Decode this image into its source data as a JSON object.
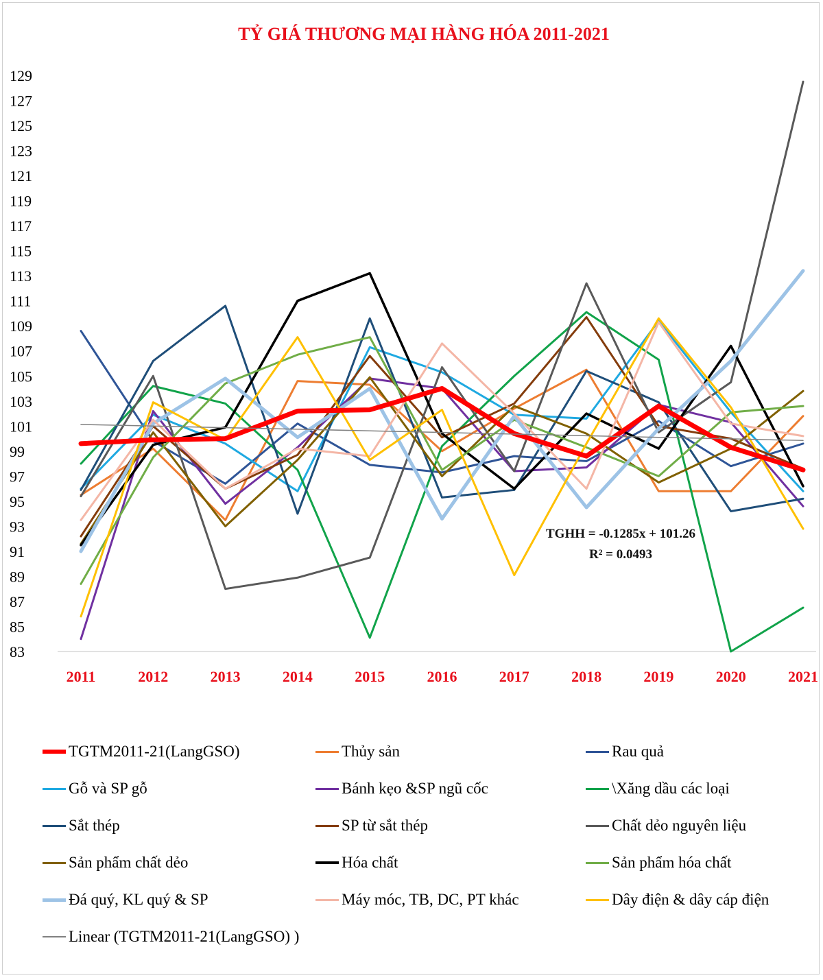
{
  "chart_data": {
    "type": "line",
    "title": "TỶ GIÁ THƯƠNG MẠI HÀNG HÓA 2011-2021",
    "x": [
      "2011",
      "2012",
      "2013",
      "2014",
      "2015",
      "2016",
      "2017",
      "2018",
      "2019",
      "2020",
      "2021"
    ],
    "ylim": [
      83,
      129
    ],
    "yticks": [
      83,
      85,
      87,
      89,
      91,
      93,
      95,
      97,
      99,
      101,
      103,
      105,
      107,
      109,
      111,
      113,
      115,
      117,
      119,
      121,
      123,
      125,
      127,
      129
    ],
    "grid": false,
    "legend_position": "bottom",
    "annotation": [
      "TGHH = -0.1285x + 101.26",
      "R² = 0.0493"
    ],
    "series": [
      {
        "name": "Thủy sản",
        "color": "#ed7d31",
        "width": 3,
        "values": [
          95.5,
          99.2,
          93.5,
          104.6,
          104.3,
          99.0,
          102.4,
          105.5,
          95.8,
          95.8,
          101.8
        ]
      },
      {
        "name": "Rau quả",
        "color": "#2f5597",
        "width": 3,
        "values": [
          108.6,
          99.8,
          96.4,
          101.2,
          97.9,
          97.3,
          98.6,
          98.2,
          101.4,
          97.8,
          99.6
        ]
      },
      {
        "name": "Gỗ và SP gỗ",
        "color": "#1fa9e1",
        "width": 3,
        "values": [
          96.0,
          101.9,
          99.6,
          95.8,
          107.3,
          105.3,
          101.9,
          101.6,
          109.4,
          102.1,
          95.8
        ]
      },
      {
        "name": "Bánh kẹo &SP ngũ cốc",
        "color": "#7030a0",
        "width": 3,
        "values": [
          84.0,
          102.2,
          94.8,
          99.3,
          104.8,
          104.0,
          97.4,
          97.7,
          102.7,
          101.3,
          94.6
        ]
      },
      {
        "name": "\\Xăng dầu các loại",
        "color": "#11a34a",
        "width": 3,
        "values": [
          98.0,
          104.2,
          102.8,
          97.5,
          84.1,
          99.4,
          105.0,
          110.1,
          106.3,
          83.0,
          86.5
        ]
      },
      {
        "name": "Sắt thép",
        "color": "#1f4e79",
        "width": 3,
        "values": [
          95.9,
          106.2,
          110.6,
          94.0,
          109.6,
          95.3,
          95.9,
          105.4,
          102.9,
          94.2,
          95.2
        ]
      },
      {
        "name": "SP từ sắt thép",
        "color": "#843c0c",
        "width": 3,
        "values": [
          92.2,
          101.0,
          96.0,
          98.7,
          106.6,
          100.1,
          102.8,
          109.7,
          101.0,
          100.0,
          97.6
        ]
      },
      {
        "name": "Chất dẻo nguyên liệu",
        "color": "#595959",
        "width": 3,
        "values": [
          95.4,
          105.0,
          88.0,
          88.9,
          90.5,
          105.7,
          97.4,
          112.4,
          100.5,
          104.5,
          128.5
        ]
      },
      {
        "name": "Sản phẩm chất dẻo",
        "color": "#806000",
        "width": 3,
        "values": [
          91.6,
          100.5,
          93.0,
          98.3,
          104.9,
          97.0,
          102.6,
          100.4,
          96.5,
          99.2,
          103.8
        ]
      },
      {
        "name": "Hóa chất",
        "color": "#000000",
        "width": 3.5,
        "values": [
          91.5,
          99.5,
          100.9,
          111.0,
          113.2,
          100.4,
          96.0,
          102.0,
          99.2,
          107.4,
          96.2
        ]
      },
      {
        "name": "Sản phẩm hóa chất",
        "color": "#70ad47",
        "width": 3,
        "values": [
          88.4,
          98.5,
          104.4,
          106.7,
          108.1,
          97.5,
          101.5,
          99.3,
          97.0,
          102.1,
          102.6
        ]
      },
      {
        "name": "Đá quý, KL quý & SP",
        "color": "#9dc3e6",
        "width": 5,
        "values": [
          91.0,
          101.2,
          104.8,
          100.1,
          104.0,
          93.6,
          101.8,
          94.5,
          100.8,
          106.2,
          113.4
        ]
      },
      {
        "name": "Máy móc, TB, DC, PT khác",
        "color": "#f4b6a6",
        "width": 3,
        "values": [
          93.5,
          101.5,
          96.0,
          99.2,
          98.6,
          107.6,
          102.0,
          96.0,
          109.3,
          101.2,
          100.2
        ]
      },
      {
        "name": "Dây điện & dây cáp điện",
        "color": "#ffc000",
        "width": 3,
        "values": [
          85.8,
          102.9,
          99.9,
          108.1,
          98.3,
          102.3,
          89.1,
          99.6,
          109.6,
          102.5,
          92.8
        ]
      },
      {
        "name": "TGTM2011-21(LangGSO)",
        "color": "#ff0000",
        "width": 7,
        "values": [
          99.6,
          99.9,
          100.0,
          102.2,
          102.3,
          104.0,
          100.4,
          98.6,
          102.6,
          99.3,
          97.5
        ]
      },
      {
        "name": "Linear (TGTM2011-21(LangGSO) )",
        "color": "#808080",
        "width": 1.5,
        "values": [
          101.13,
          101.0,
          100.87,
          100.75,
          100.62,
          100.49,
          100.36,
          100.23,
          100.1,
          99.98,
          99.85
        ]
      }
    ],
    "legend_order": [
      "TGTM2011-21(LangGSO)",
      "Thủy sản",
      "Rau quả",
      "Gỗ và SP gỗ",
      "Bánh kẹo &SP ngũ cốc",
      "\\Xăng dầu các loại",
      "Sắt thép",
      "SP từ sắt thép",
      "Chất dẻo nguyên liệu",
      "Sản phẩm chất dẻo",
      "Hóa chất",
      "Sản phẩm hóa chất",
      "Đá quý, KL quý & SP",
      "Máy móc, TB, DC, PT khác",
      "Dây điện & dây cáp điện",
      "Linear (TGTM2011-21(LangGSO) )"
    ]
  }
}
